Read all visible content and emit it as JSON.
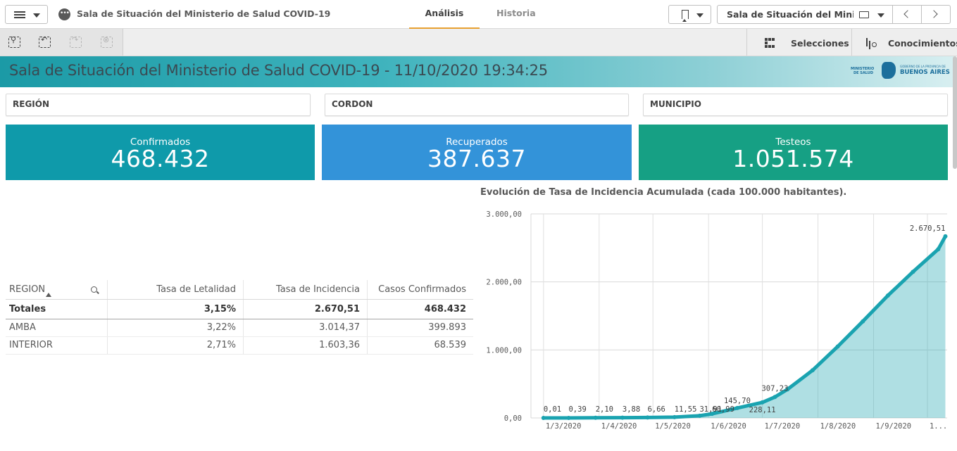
{
  "topbar": {
    "app_title": "Sala de Situación del Ministerio de Salud COVID-19",
    "tabs": [
      {
        "label": "Análisis"
      },
      {
        "label": "Historia"
      }
    ],
    "sheet_select": "Sala de Situación del Minist..."
  },
  "toolbar": {
    "selections_label": "Selecciones",
    "insights_label": "Conocimientos"
  },
  "banner": {
    "title": "Sala de Situación del Ministerio de Salud COVID-19 - 11/10/2020 19:34:25",
    "logo": {
      "ministry": "MINISTERIO DE SALUD",
      "gov": "GOBIERNO DE LA PROVINCIA DE",
      "province": "BUENOS AIRES"
    }
  },
  "filters": [
    {
      "label": "REGIÓN"
    },
    {
      "label": "CORDON"
    },
    {
      "label": "MUNICIPIO"
    }
  ],
  "kpis": [
    {
      "label": "Confirmados",
      "value": "468.432",
      "color": "#0f9aaa"
    },
    {
      "label": "Recuperados",
      "value": "387.637",
      "color": "#3393d9"
    },
    {
      "label": "Testeos",
      "value": "1.051.574",
      "color": "#16a084"
    }
  ],
  "table": {
    "headers": [
      "REGION",
      "Tasa de Letalidad",
      "Tasa de Incidencia",
      "Casos Confirmados"
    ],
    "totals": [
      "Totales",
      "3,15%",
      "2.670,51",
      "468.432"
    ],
    "rows": [
      [
        "AMBA",
        "3,22%",
        "3.014,37",
        "399.893"
      ],
      [
        "INTERIOR",
        "2,71%",
        "1.603,36",
        "68.539"
      ]
    ]
  },
  "chart_data": {
    "type": "area",
    "title": "Evolución de Tasa de Incidencia Acumulada (cada 100.000 habitantes).",
    "xlabel": "",
    "ylabel": "",
    "ylim": [
      0,
      3000
    ],
    "y_ticks": [
      "0,00",
      "1.000,00",
      "2.000,00",
      "3.000,00"
    ],
    "x_ticks": [
      "1/3/2020",
      "1/4/2020",
      "1/5/2020",
      "1/6/2020",
      "1/7/2020",
      "1/8/2020",
      "1/9/2020",
      "1..."
    ],
    "series": [
      {
        "color": "#1aa3b0",
        "points": [
          {
            "x": "2020-03-01",
            "y": 0.01
          },
          {
            "x": "2020-03-15",
            "y": 0.39
          },
          {
            "x": "2020-03-30",
            "y": 2.1
          },
          {
            "x": "2020-04-14",
            "y": 3.88
          },
          {
            "x": "2020-04-28",
            "y": 6.66
          },
          {
            "x": "2020-05-13",
            "y": 11.55
          },
          {
            "x": "2020-05-27",
            "y": 31.91
          },
          {
            "x": "2020-06-03",
            "y": 60.99
          },
          {
            "x": "2020-06-17",
            "y": 145.7
          },
          {
            "x": "2020-07-01",
            "y": 228.11
          },
          {
            "x": "2020-07-08",
            "y": 307.23
          },
          {
            "x": "2020-07-15",
            "y": 420
          },
          {
            "x": "2020-07-29",
            "y": 700
          },
          {
            "x": "2020-08-12",
            "y": 1050
          },
          {
            "x": "2020-08-26",
            "y": 1420
          },
          {
            "x": "2020-09-09",
            "y": 1800
          },
          {
            "x": "2020-09-23",
            "y": 2150
          },
          {
            "x": "2020-10-07",
            "y": 2480
          },
          {
            "x": "2020-10-11",
            "y": 2670.51
          }
        ]
      }
    ],
    "data_labels": [
      {
        "x": "2020-03-01",
        "text": "0,01"
      },
      {
        "x": "2020-03-15",
        "text": "0,39"
      },
      {
        "x": "2020-03-30",
        "text": "2,10"
      },
      {
        "x": "2020-04-14",
        "text": "3,88"
      },
      {
        "x": "2020-04-28",
        "text": "6,66"
      },
      {
        "x": "2020-05-13",
        "text": "11,55"
      },
      {
        "x": "2020-05-27",
        "text": "31,91"
      },
      {
        "x": "2020-06-03",
        "text": "60,99"
      },
      {
        "x": "2020-06-17",
        "text": "145,70"
      },
      {
        "x": "2020-07-01",
        "text": "228,11"
      },
      {
        "x": "2020-07-08",
        "text": "307,23"
      },
      {
        "x": "2020-10-11",
        "text": "2.670,51"
      }
    ],
    "grid": true
  }
}
